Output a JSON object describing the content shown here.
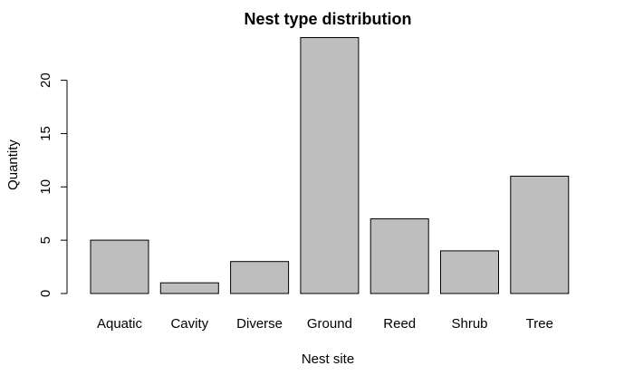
{
  "chart_data": {
    "type": "bar",
    "title": "Nest type distribution",
    "xlabel": "Nest site",
    "ylabel": "Quantity",
    "categories": [
      "Aquatic",
      "Cavity",
      "Diverse",
      "Ground",
      "Reed",
      "Shrub",
      "Tree"
    ],
    "values": [
      5,
      1,
      3,
      24,
      7,
      4,
      11
    ],
    "yticks": [
      0,
      5,
      10,
      15,
      20
    ],
    "ylim": [
      0,
      24
    ],
    "bar_color": "#bebebe",
    "edge_color": "#000000",
    "grid": false
  }
}
